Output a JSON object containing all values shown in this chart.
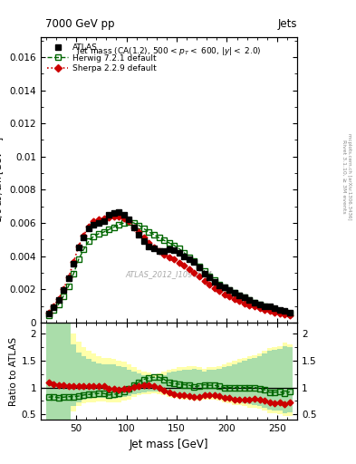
{
  "title_top": "7000 GeV pp",
  "title_right": "Jets",
  "watermark": "ATLAS_2012_I1094564",
  "xlabel": "Jet mass [GeV]",
  "ylabel_main": "1/σ dσ/dm [GeV⁻¹]",
  "ylabel_ratio": "Ratio to ATLAS",
  "right_label": "Rivet 3.1.10, ≥ 3M events",
  "right_label2": "mcplots.cern.ch [arXiv:1306.3436]",
  "xlim": [
    15,
    270
  ],
  "ylim_main": [
    0,
    0.0172
  ],
  "ylim_ratio": [
    0.4,
    2.2
  ],
  "atlas_x": [
    22.5,
    27.5,
    32.5,
    37.5,
    42.5,
    47.5,
    52.5,
    57.5,
    62.5,
    67.5,
    72.5,
    77.5,
    82.5,
    87.5,
    92.5,
    97.5,
    102.5,
    107.5,
    112.5,
    117.5,
    122.5,
    127.5,
    132.5,
    137.5,
    142.5,
    147.5,
    152.5,
    157.5,
    162.5,
    167.5,
    172.5,
    177.5,
    182.5,
    187.5,
    192.5,
    197.5,
    202.5,
    207.5,
    212.5,
    217.5,
    222.5,
    227.5,
    232.5,
    237.5,
    242.5,
    247.5,
    252.5,
    257.5,
    262.5
  ],
  "atlas_y": [
    0.00055,
    0.0009,
    0.00135,
    0.00195,
    0.00265,
    0.00355,
    0.0045,
    0.0051,
    0.00565,
    0.0059,
    0.006,
    0.0061,
    0.0065,
    0.0066,
    0.00665,
    0.0065,
    0.0062,
    0.0057,
    0.0053,
    0.0049,
    0.0046,
    0.00445,
    0.0043,
    0.0043,
    0.0044,
    0.00435,
    0.0042,
    0.004,
    0.0038,
    0.00365,
    0.0033,
    0.00295,
    0.0027,
    0.00245,
    0.00225,
    0.0021,
    0.00195,
    0.0018,
    0.00165,
    0.0015,
    0.00135,
    0.0012,
    0.0011,
    0.001,
    0.00095,
    0.00085,
    0.00075,
    0.0007,
    0.0006
  ],
  "herwig_x": [
    22.5,
    27.5,
    32.5,
    37.5,
    42.5,
    47.5,
    52.5,
    57.5,
    62.5,
    67.5,
    72.5,
    77.5,
    82.5,
    87.5,
    92.5,
    97.5,
    102.5,
    107.5,
    112.5,
    117.5,
    122.5,
    127.5,
    132.5,
    137.5,
    142.5,
    147.5,
    152.5,
    157.5,
    162.5,
    167.5,
    172.5,
    177.5,
    182.5,
    187.5,
    192.5,
    197.5,
    202.5,
    207.5,
    212.5,
    217.5,
    222.5,
    227.5,
    232.5,
    237.5,
    242.5,
    247.5,
    252.5,
    257.5,
    262.5
  ],
  "herwig_y": [
    0.00045,
    0.00075,
    0.0011,
    0.0016,
    0.0022,
    0.00295,
    0.0038,
    0.0044,
    0.0049,
    0.0052,
    0.00535,
    0.00545,
    0.0056,
    0.00575,
    0.0059,
    0.006,
    0.00605,
    0.006,
    0.00585,
    0.00565,
    0.00545,
    0.0053,
    0.0051,
    0.00495,
    0.0048,
    0.00465,
    0.00445,
    0.0042,
    0.00395,
    0.0037,
    0.0034,
    0.0031,
    0.0028,
    0.00255,
    0.0023,
    0.0021,
    0.00195,
    0.0018,
    0.00165,
    0.0015,
    0.00135,
    0.0012,
    0.00108,
    0.00096,
    0.00086,
    0.00077,
    0.00069,
    0.00062,
    0.00055
  ],
  "sherpa_x": [
    22.5,
    27.5,
    32.5,
    37.5,
    42.5,
    47.5,
    52.5,
    57.5,
    62.5,
    67.5,
    72.5,
    77.5,
    82.5,
    87.5,
    92.5,
    97.5,
    102.5,
    107.5,
    112.5,
    117.5,
    122.5,
    127.5,
    132.5,
    137.5,
    142.5,
    147.5,
    152.5,
    157.5,
    162.5,
    167.5,
    172.5,
    177.5,
    182.5,
    187.5,
    192.5,
    197.5,
    202.5,
    207.5,
    212.5,
    217.5,
    222.5,
    227.5,
    232.5,
    237.5,
    242.5,
    247.5,
    252.5,
    257.5,
    262.5
  ],
  "sherpa_y": [
    0.0006,
    0.00095,
    0.00142,
    0.00202,
    0.00272,
    0.00365,
    0.0046,
    0.00525,
    0.0058,
    0.0061,
    0.0062,
    0.00625,
    0.00635,
    0.0064,
    0.0064,
    0.0063,
    0.0061,
    0.00575,
    0.00545,
    0.0051,
    0.0048,
    0.00455,
    0.0043,
    0.0041,
    0.00395,
    0.0038,
    0.00362,
    0.00342,
    0.0032,
    0.00298,
    0.00275,
    0.00252,
    0.0023,
    0.00208,
    0.00188,
    0.0017,
    0.00155,
    0.0014,
    0.00128,
    0.00116,
    0.00105,
    0.00095,
    0.00085,
    0.00076,
    0.00068,
    0.0006,
    0.00054,
    0.00048,
    0.00043
  ],
  "herwig_ratio": [
    0.82,
    0.83,
    0.81,
    0.82,
    0.83,
    0.83,
    0.84,
    0.86,
    0.87,
    0.88,
    0.89,
    0.89,
    0.86,
    0.87,
    0.89,
    0.92,
    0.98,
    1.05,
    1.1,
    1.15,
    1.18,
    1.19,
    1.19,
    1.15,
    1.09,
    1.07,
    1.06,
    1.05,
    1.04,
    1.01,
    1.03,
    1.05,
    1.04,
    1.04,
    1.02,
    1.0,
    1.0,
    1.0,
    1.0,
    1.0,
    1.0,
    1.0,
    0.98,
    0.96,
    0.91,
    0.91,
    0.92,
    0.89,
    0.92
  ],
  "sherpa_ratio": [
    1.09,
    1.06,
    1.05,
    1.04,
    1.03,
    1.03,
    1.02,
    1.03,
    1.03,
    1.03,
    1.03,
    1.02,
    0.98,
    0.97,
    0.96,
    0.97,
    0.98,
    1.01,
    1.03,
    1.04,
    1.04,
    1.02,
    1.0,
    0.95,
    0.9,
    0.87,
    0.86,
    0.86,
    0.84,
    0.82,
    0.83,
    0.85,
    0.85,
    0.85,
    0.84,
    0.81,
    0.8,
    0.78,
    0.78,
    0.77,
    0.78,
    0.79,
    0.77,
    0.76,
    0.72,
    0.71,
    0.72,
    0.69,
    0.72
  ],
  "atlas_color": "#000000",
  "herwig_color": "#006600",
  "sherpa_color": "#cc0000",
  "band_yellow": "#ffffaa",
  "band_green": "#aaddaa",
  "bin_edges": [
    20,
    25,
    30,
    35,
    40,
    45,
    50,
    55,
    60,
    65,
    70,
    75,
    80,
    85,
    90,
    95,
    100,
    105,
    110,
    115,
    120,
    125,
    130,
    135,
    140,
    145,
    150,
    155,
    160,
    165,
    170,
    175,
    180,
    185,
    190,
    195,
    200,
    205,
    210,
    215,
    220,
    225,
    230,
    235,
    240,
    245,
    250,
    255,
    260,
    265
  ],
  "yellow_lo": [
    0.4,
    0.4,
    0.4,
    0.4,
    0.4,
    0.55,
    0.65,
    0.7,
    0.72,
    0.73,
    0.74,
    0.74,
    0.72,
    0.72,
    0.73,
    0.75,
    0.78,
    0.82,
    0.85,
    0.87,
    0.88,
    0.89,
    0.88,
    0.86,
    0.82,
    0.8,
    0.79,
    0.78,
    0.77,
    0.75,
    0.76,
    0.78,
    0.77,
    0.77,
    0.75,
    0.72,
    0.7,
    0.68,
    0.67,
    0.65,
    0.63,
    0.62,
    0.6,
    0.57,
    0.53,
    0.52,
    0.51,
    0.47,
    0.48
  ],
  "yellow_hi": [
    2.2,
    2.2,
    2.2,
    2.2,
    2.2,
    2.0,
    1.85,
    1.75,
    1.68,
    1.62,
    1.57,
    1.54,
    1.55,
    1.53,
    1.5,
    1.47,
    1.42,
    1.37,
    1.33,
    1.3,
    1.27,
    1.25,
    1.26,
    1.29,
    1.33,
    1.35,
    1.37,
    1.38,
    1.39,
    1.4,
    1.38,
    1.35,
    1.38,
    1.38,
    1.4,
    1.43,
    1.46,
    1.49,
    1.52,
    1.55,
    1.58,
    1.6,
    1.63,
    1.68,
    1.73,
    1.75,
    1.77,
    1.83,
    1.8
  ],
  "green_lo": [
    0.4,
    0.4,
    0.4,
    0.4,
    0.4,
    0.65,
    0.73,
    0.77,
    0.79,
    0.8,
    0.81,
    0.81,
    0.79,
    0.79,
    0.8,
    0.82,
    0.84,
    0.87,
    0.89,
    0.91,
    0.92,
    0.93,
    0.92,
    0.9,
    0.87,
    0.85,
    0.84,
    0.83,
    0.82,
    0.8,
    0.81,
    0.83,
    0.82,
    0.82,
    0.8,
    0.78,
    0.76,
    0.74,
    0.73,
    0.71,
    0.69,
    0.68,
    0.66,
    0.63,
    0.59,
    0.58,
    0.57,
    0.53,
    0.54
  ],
  "green_hi": [
    2.2,
    2.2,
    2.2,
    2.2,
    2.2,
    1.8,
    1.65,
    1.58,
    1.52,
    1.47,
    1.44,
    1.42,
    1.43,
    1.42,
    1.39,
    1.37,
    1.33,
    1.29,
    1.26,
    1.23,
    1.21,
    1.2,
    1.21,
    1.23,
    1.27,
    1.29,
    1.31,
    1.32,
    1.33,
    1.34,
    1.33,
    1.3,
    1.33,
    1.33,
    1.35,
    1.37,
    1.4,
    1.43,
    1.46,
    1.49,
    1.52,
    1.54,
    1.57,
    1.62,
    1.67,
    1.69,
    1.71,
    1.77,
    1.74
  ]
}
